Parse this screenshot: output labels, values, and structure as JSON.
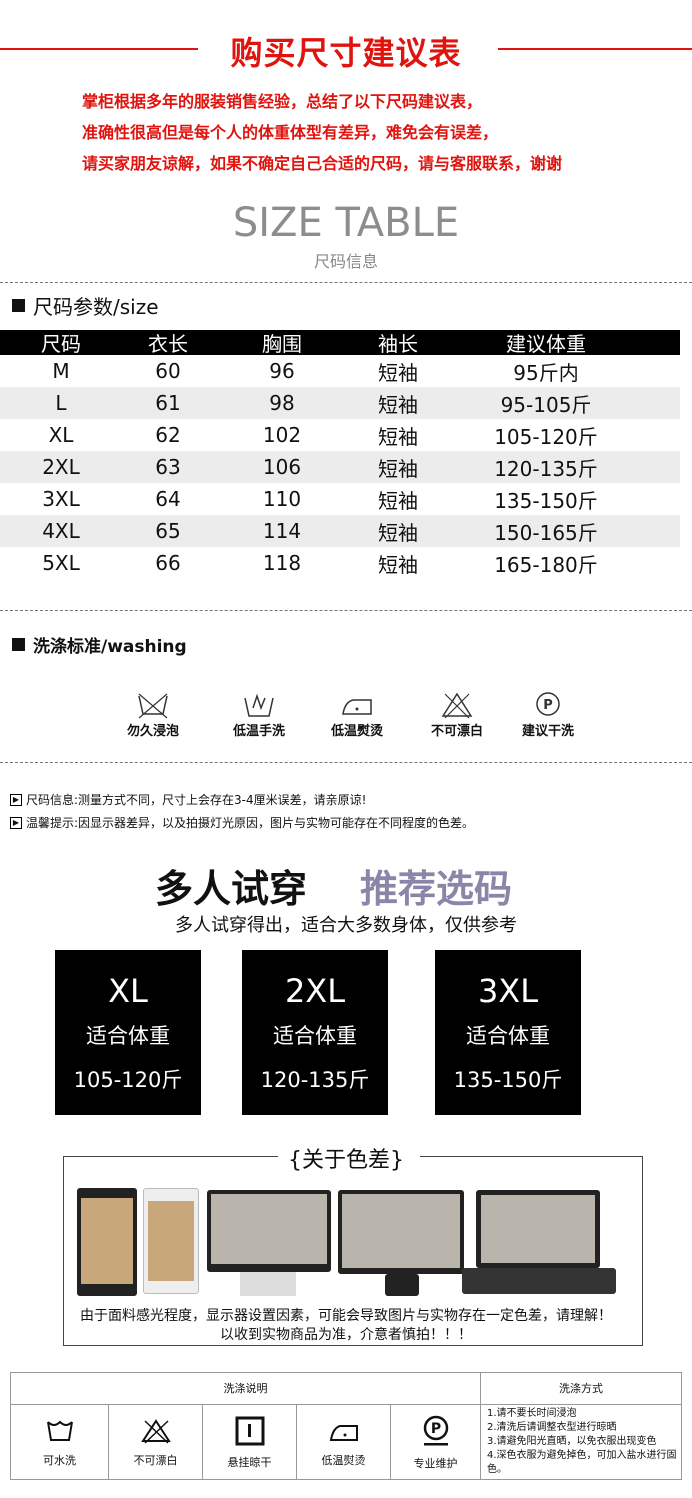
{
  "header": {
    "title": "购买尺寸建议表",
    "intro": [
      "掌柜根据多年的服装销售经验，总结了以下尺码建议表，",
      "准确性很高但是每个人的体重体型有差异，难免会有误差，",
      "请买家朋友谅解，如果不确定自己合适的尺码，请与客服联系，谢谢"
    ],
    "accent": "#e0140f"
  },
  "size_table": {
    "title": "SIZE TABLE",
    "subtitle": "尺码信息",
    "section": "尺码参数/size",
    "columns": [
      "尺码",
      "衣长",
      "胸围",
      "袖长",
      "建议体重"
    ],
    "rows": [
      [
        "M",
        "60",
        "96",
        "短袖",
        "95斤内"
      ],
      [
        "L",
        "61",
        "98",
        "短袖",
        "95-105斤"
      ],
      [
        "XL",
        "62",
        "102",
        "短袖",
        "105-120斤"
      ],
      [
        "2XL",
        "63",
        "106",
        "短袖",
        "120-135斤"
      ],
      [
        "3XL",
        "64",
        "110",
        "短袖",
        "135-150斤"
      ],
      [
        "4XL",
        "65",
        "114",
        "短袖",
        "150-165斤"
      ],
      [
        "5XL",
        "66",
        "118",
        "短袖",
        "165-180斤"
      ]
    ]
  },
  "washing": {
    "section": "洗涤标准/washing",
    "items": [
      {
        "icon": "no-soak-icon",
        "label": "勿久浸泡"
      },
      {
        "icon": "hand-wash-icon",
        "label": "低温手洗"
      },
      {
        "icon": "low-iron-icon",
        "label": "低温熨烫"
      },
      {
        "icon": "no-bleach-icon",
        "label": "不可漂白"
      },
      {
        "icon": "dry-clean-icon",
        "label": "建议干洗"
      }
    ]
  },
  "notes": [
    "尺码信息:测量方式不同，尺寸上会存在3-4厘米误差，请亲原谅!",
    "温馨提示:因显示器差异，以及拍摄灯光原因，图片与实物可能存在不同程度的色差。"
  ],
  "try_on": {
    "title_a": "多人试穿",
    "title_b": "推荐选码",
    "subtitle": "多人试穿得出，适合大多数身体，仅供参考",
    "accent": "#8a86a8",
    "boxes": [
      {
        "size": "XL",
        "label": "适合体重",
        "weight": "105-120斤"
      },
      {
        "size": "2XL",
        "label": "适合体重",
        "weight": "120-135斤"
      },
      {
        "size": "3XL",
        "label": "适合体重",
        "weight": "135-150斤"
      }
    ]
  },
  "color_diff": {
    "title": "{关于色差}",
    "caption": [
      "由于面料感光程度，显示器设置因素，可能会导致图片与实物存在一定色差，请理解！",
      "以收到实物商品为准，介意者慎拍！！！"
    ]
  },
  "care_table": {
    "left_header": "洗涤说明",
    "right_header": "洗涤方式",
    "items": [
      {
        "icon": "washable-icon",
        "label": "可水洗"
      },
      {
        "icon": "no-bleach-icon",
        "label": "不可漂白"
      },
      {
        "icon": "hang-dry-icon",
        "label": "悬挂晾干"
      },
      {
        "icon": "low-iron-icon",
        "label": "低温熨烫"
      },
      {
        "icon": "professional-care-icon",
        "label": "专业维护"
      }
    ],
    "methods": [
      "1.请不要长时间浸泡",
      "2.清洗后请调整衣型进行晾晒",
      "3.请避免阳光直晒，以免衣服出现变色",
      "4.深色衣服为避免掉色，可加入盐水进行固色。"
    ]
  }
}
